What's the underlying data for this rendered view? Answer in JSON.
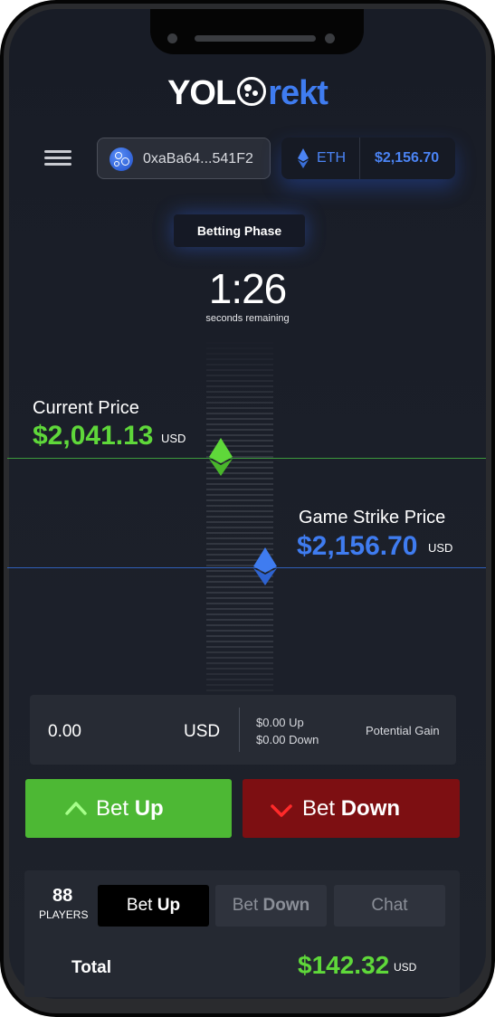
{
  "app": {
    "logo_main": "YOL",
    "logo_accent": "rekt"
  },
  "header": {
    "wallet_address": "0xaBa64...541F2",
    "network_label": "ETH",
    "network_price": "$2,156.70"
  },
  "round": {
    "phase": "Betting Phase",
    "timer": "1:26",
    "timer_caption": "seconds remaining"
  },
  "current_price": {
    "label": "Current Price",
    "value": "$2,041.13",
    "unit": "USD"
  },
  "strike_price": {
    "label": "Game Strike Price",
    "value": "$2,156.70",
    "unit": "USD"
  },
  "bet_input": {
    "amount": "0.00",
    "unit": "USD",
    "up_total": "$0.00 Up",
    "down_total": "$0.00 Down",
    "gain_label": "Potential Gain"
  },
  "actions": {
    "bet_up_prefix": "Bet",
    "bet_up_strong": "Up",
    "bet_down_prefix": "Bet",
    "bet_down_strong": "Down"
  },
  "players": {
    "count": "88",
    "label": "PLAYERS"
  },
  "tabs": [
    {
      "prefix": "Bet",
      "strong": "Up",
      "active": true
    },
    {
      "prefix": "Bet",
      "strong": "Down",
      "active": false
    },
    {
      "prefix": "Chat",
      "strong": "",
      "active": false
    }
  ],
  "total": {
    "label": "Total",
    "value": "$142.32",
    "unit": "USD"
  },
  "colors": {
    "up_green": "#4db834",
    "down_red": "#7d0f12",
    "accent_blue": "#3f7cf0",
    "price_green": "#5fd83a"
  }
}
